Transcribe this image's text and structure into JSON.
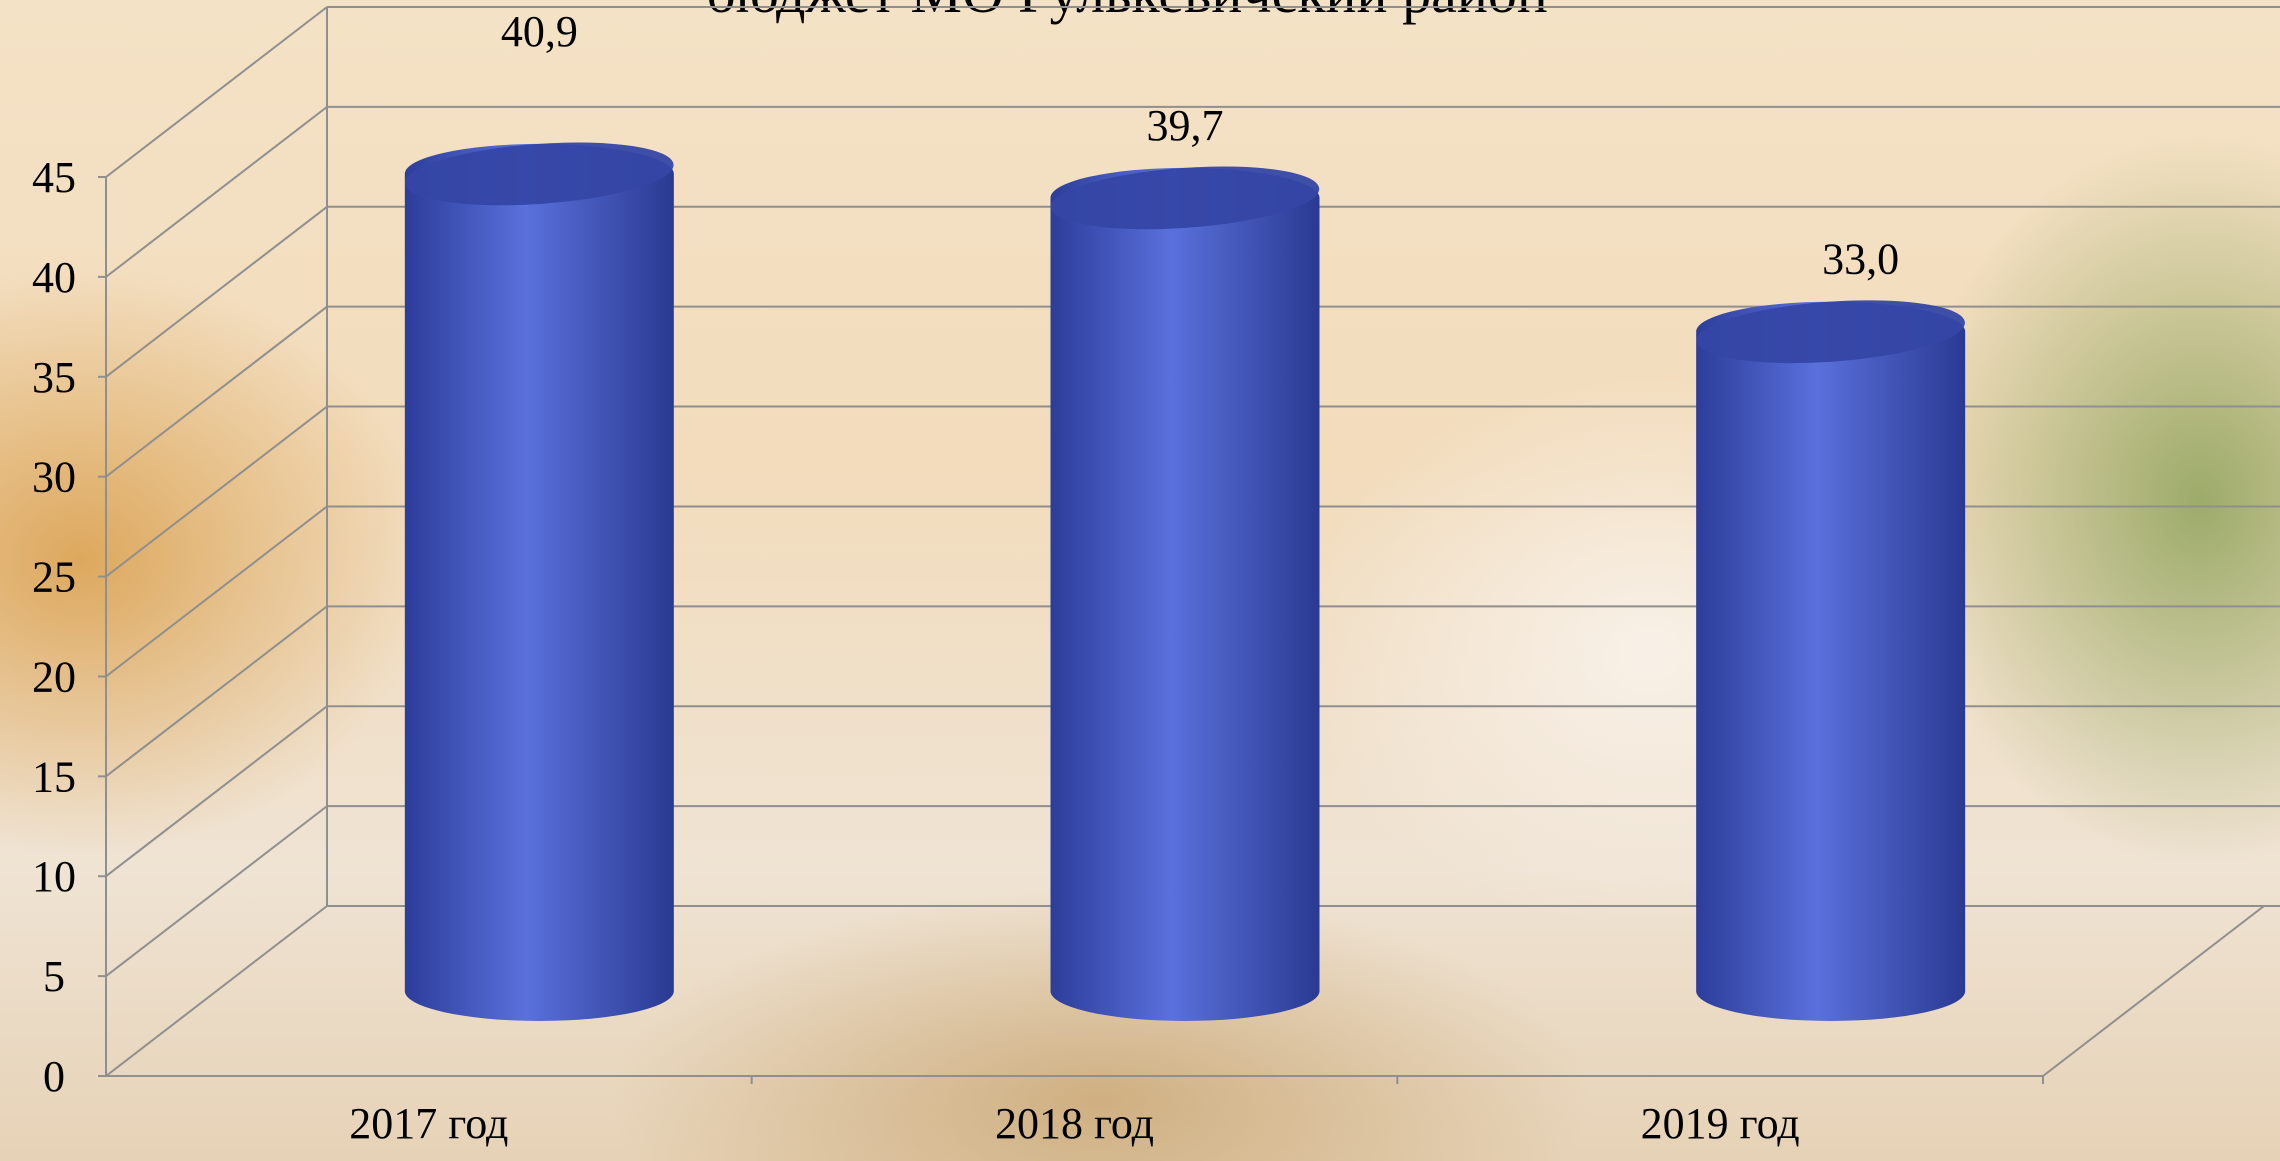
{
  "chart_data": {
    "type": "bar3d",
    "title": "бюджет МО Гулькевичский район",
    "categories": [
      "2017 год",
      "2018 год",
      "2019 год"
    ],
    "values": [
      40.9,
      39.7,
      33.0
    ],
    "value_labels": [
      "40,9",
      "39,7",
      "33,0"
    ],
    "color": "#4a5fcf",
    "ylim": [
      0,
      45
    ],
    "yticks": [
      0,
      5,
      10,
      15,
      20,
      25,
      30,
      35,
      40,
      45
    ],
    "grid": true
  }
}
